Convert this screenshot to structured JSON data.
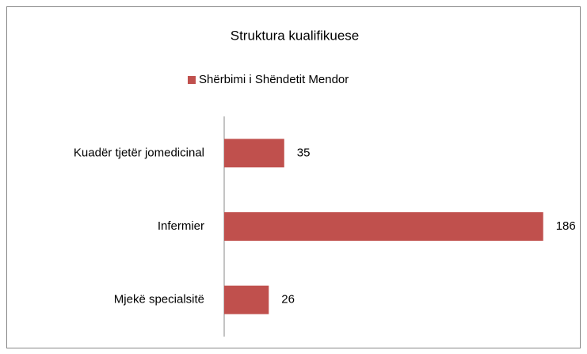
{
  "chart_data": {
    "type": "bar",
    "orientation": "horizontal",
    "title": "Struktura kualifikuese",
    "categories": [
      "Kuadër tjetër jomedicinal",
      "Infermier",
      "Mjekë specialsitë"
    ],
    "series": [
      {
        "name": "Shërbimi i Shëndetit Mendor",
        "color": "#c0504d",
        "values": [
          35,
          186,
          26
        ]
      }
    ],
    "xlim": [
      0,
      200
    ],
    "legend": "top"
  }
}
